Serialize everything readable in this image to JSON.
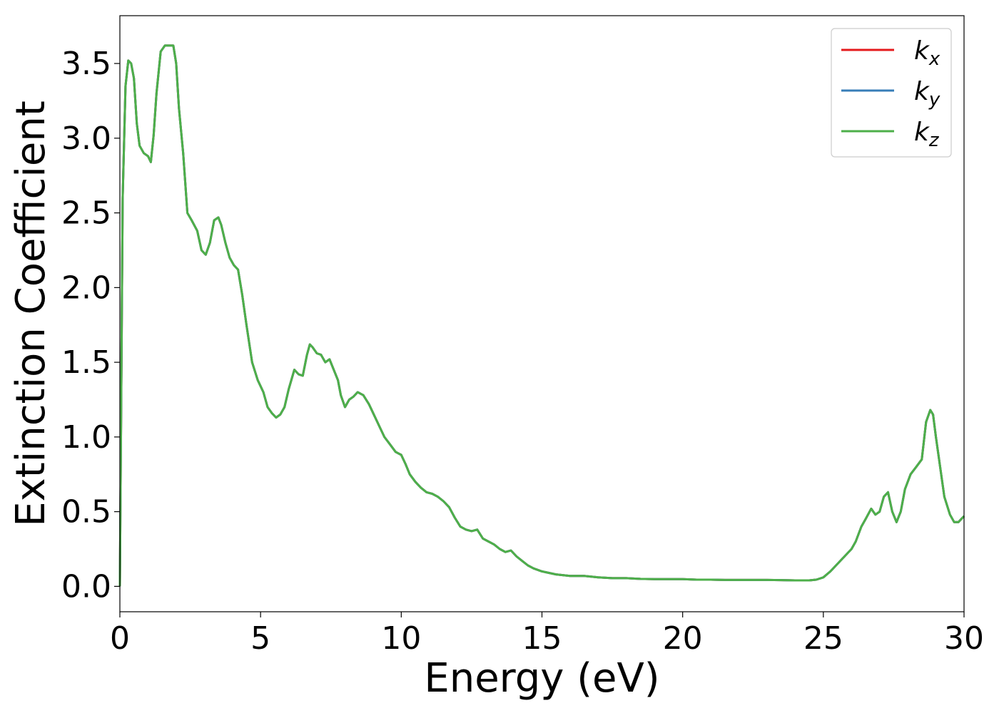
{
  "chart_data": {
    "type": "line",
    "title": "",
    "xlabel": "Energy (eV)",
    "ylabel": "Extinction Coefficient",
    "xlim": [
      0,
      30
    ],
    "ylim": [
      -0.17,
      3.82
    ],
    "xticks": [
      0,
      5,
      10,
      15,
      20,
      25,
      30
    ],
    "xtick_labels": [
      "0",
      "5",
      "10",
      "15",
      "20",
      "25",
      "30"
    ],
    "yticks": [
      0.0,
      0.5,
      1.0,
      1.5,
      2.0,
      2.5,
      3.0,
      3.5
    ],
    "ytick_labels": [
      "0.0",
      "0.5",
      "1.0",
      "1.5",
      "2.0",
      "2.5",
      "3.0",
      "3.5"
    ],
    "grid": false,
    "legend_position": "top-right",
    "series": [
      {
        "name": "k",
        "subscript": "x",
        "color": "#e41a1c"
      },
      {
        "name": "k",
        "subscript": "y",
        "color": "#377eb8"
      },
      {
        "name": "k",
        "subscript": "z",
        "color": "#4daf4a"
      }
    ],
    "x": [
      0,
      0.1,
      0.2,
      0.3,
      0.4,
      0.5,
      0.6,
      0.7,
      0.85,
      1.0,
      1.1,
      1.2,
      1.3,
      1.45,
      1.6,
      1.75,
      1.9,
      2.0,
      2.1,
      2.25,
      2.4,
      2.55,
      2.75,
      2.9,
      3.05,
      3.2,
      3.35,
      3.5,
      3.6,
      3.75,
      3.9,
      4.05,
      4.2,
      4.35,
      4.5,
      4.7,
      4.9,
      5.1,
      5.25,
      5.4,
      5.55,
      5.7,
      5.85,
      6.0,
      6.2,
      6.35,
      6.5,
      6.65,
      6.75,
      6.85,
      7.0,
      7.15,
      7.3,
      7.45,
      7.6,
      7.75,
      7.85,
      8.0,
      8.15,
      8.3,
      8.45,
      8.65,
      8.85,
      9.0,
      9.2,
      9.4,
      9.6,
      9.8,
      10.0,
      10.15,
      10.3,
      10.5,
      10.7,
      10.9,
      11.1,
      11.3,
      11.5,
      11.7,
      11.9,
      12.1,
      12.3,
      12.5,
      12.7,
      12.9,
      13.1,
      13.3,
      13.5,
      13.7,
      13.9,
      14.1,
      14.3,
      14.5,
      14.7,
      15.0,
      15.5,
      16.0,
      16.5,
      17.0,
      17.5,
      18.0,
      18.5,
      19.0,
      19.5,
      20.0,
      20.5,
      21.0,
      21.5,
      22.0,
      22.5,
      23.0,
      23.5,
      24.0,
      24.5,
      24.75,
      25.0,
      25.25,
      25.5,
      25.75,
      26.0,
      26.15,
      26.35,
      26.5,
      26.7,
      26.85,
      27.0,
      27.15,
      27.3,
      27.45,
      27.6,
      27.75,
      27.9,
      28.1,
      28.3,
      28.5,
      28.65,
      28.8,
      28.9,
      29.0,
      29.15,
      29.3,
      29.5,
      29.65,
      29.8,
      30.0
    ],
    "y": [
      0.0,
      2.6,
      3.35,
      3.52,
      3.5,
      3.4,
      3.1,
      2.95,
      2.9,
      2.88,
      2.84,
      3.02,
      3.3,
      3.58,
      3.62,
      3.62,
      3.62,
      3.5,
      3.2,
      2.9,
      2.5,
      2.45,
      2.38,
      2.25,
      2.22,
      2.3,
      2.45,
      2.47,
      2.42,
      2.3,
      2.2,
      2.15,
      2.12,
      1.95,
      1.75,
      1.5,
      1.38,
      1.3,
      1.2,
      1.16,
      1.13,
      1.15,
      1.2,
      1.32,
      1.45,
      1.42,
      1.41,
      1.55,
      1.62,
      1.6,
      1.56,
      1.55,
      1.5,
      1.52,
      1.45,
      1.38,
      1.28,
      1.2,
      1.25,
      1.27,
      1.3,
      1.28,
      1.22,
      1.16,
      1.08,
      1.0,
      0.95,
      0.9,
      0.88,
      0.82,
      0.75,
      0.7,
      0.66,
      0.63,
      0.62,
      0.6,
      0.57,
      0.53,
      0.46,
      0.4,
      0.38,
      0.37,
      0.38,
      0.32,
      0.3,
      0.28,
      0.25,
      0.23,
      0.24,
      0.2,
      0.17,
      0.14,
      0.12,
      0.1,
      0.08,
      0.07,
      0.07,
      0.06,
      0.055,
      0.055,
      0.05,
      0.048,
      0.048,
      0.048,
      0.045,
      0.045,
      0.043,
      0.043,
      0.043,
      0.043,
      0.042,
      0.04,
      0.04,
      0.045,
      0.06,
      0.1,
      0.15,
      0.2,
      0.25,
      0.3,
      0.4,
      0.45,
      0.52,
      0.48,
      0.5,
      0.6,
      0.63,
      0.5,
      0.43,
      0.5,
      0.65,
      0.75,
      0.8,
      0.85,
      1.1,
      1.18,
      1.15,
      1.0,
      0.8,
      0.6,
      0.48,
      0.43,
      0.43,
      0.47
    ]
  }
}
